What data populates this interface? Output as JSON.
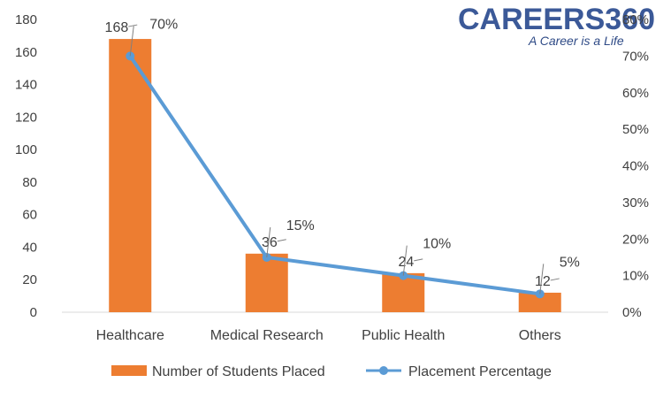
{
  "logo": {
    "name": "CAREERS360",
    "tagline": "A Career is a Life",
    "color": "#3b5998"
  },
  "chart_data": {
    "type": "bar",
    "categories": [
      "Healthcare",
      "Medical Research",
      "Public Health",
      "Others"
    ],
    "series": [
      {
        "name": "Number of Students Placed",
        "type": "bar",
        "axis": "left",
        "values": [
          168,
          36,
          24,
          12
        ],
        "labels": [
          "168",
          "36",
          "24",
          "12"
        ],
        "color": "#ed7d31"
      },
      {
        "name": "Placement Percentage",
        "type": "line",
        "axis": "right",
        "values": [
          70,
          15,
          10,
          5
        ],
        "labels": [
          "70%",
          "15%",
          "10%",
          "5%"
        ],
        "color": "#5b9bd5"
      }
    ],
    "y_left": {
      "min": 0,
      "max": 180,
      "step": 20,
      "ticks": [
        "0",
        "20",
        "40",
        "60",
        "80",
        "100",
        "120",
        "140",
        "160",
        "180"
      ]
    },
    "y_right": {
      "min": 0,
      "max": 80,
      "step": 10,
      "ticks": [
        "0%",
        "10%",
        "20%",
        "30%",
        "40%",
        "50%",
        "60%",
        "70%",
        "80%"
      ]
    },
    "grid": false,
    "legend_position": "bottom"
  }
}
